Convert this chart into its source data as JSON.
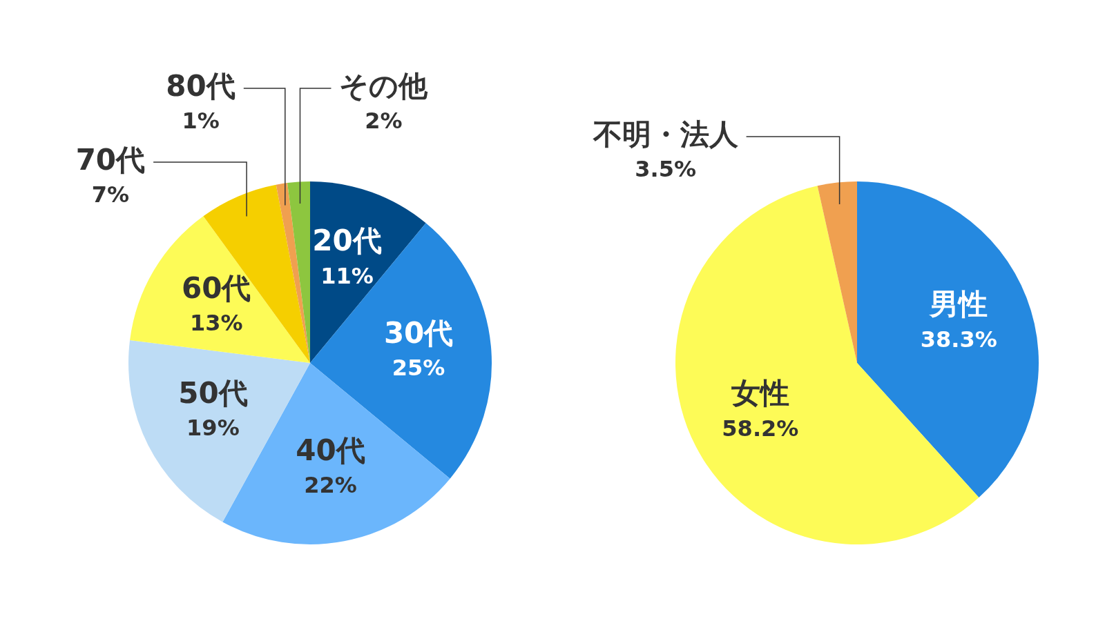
{
  "chart_data": [
    {
      "type": "pie",
      "categories": [
        "20代",
        "30代",
        "40代",
        "50代",
        "60代",
        "70代",
        "80代",
        "その他"
      ],
      "values": [
        11,
        25,
        22,
        19,
        13,
        7,
        1,
        2
      ],
      "colors": [
        "#004a87",
        "#2589e0",
        "#6bb6fc",
        "#bddcf5",
        "#fdfb57",
        "#f5cf00",
        "#f0a050",
        "#8dc63f"
      ],
      "value_labels": [
        "11%",
        "25%",
        "22%",
        "19%",
        "13%",
        "7%",
        "1%",
        "2%"
      ]
    },
    {
      "type": "pie",
      "categories": [
        "男性",
        "女性",
        "不明・法人"
      ],
      "values": [
        38.3,
        58.2,
        3.5
      ],
      "colors": [
        "#2589e0",
        "#fdfb57",
        "#f0a050"
      ],
      "value_labels": [
        "38.3%",
        "58.2%",
        "3.5%"
      ]
    }
  ]
}
